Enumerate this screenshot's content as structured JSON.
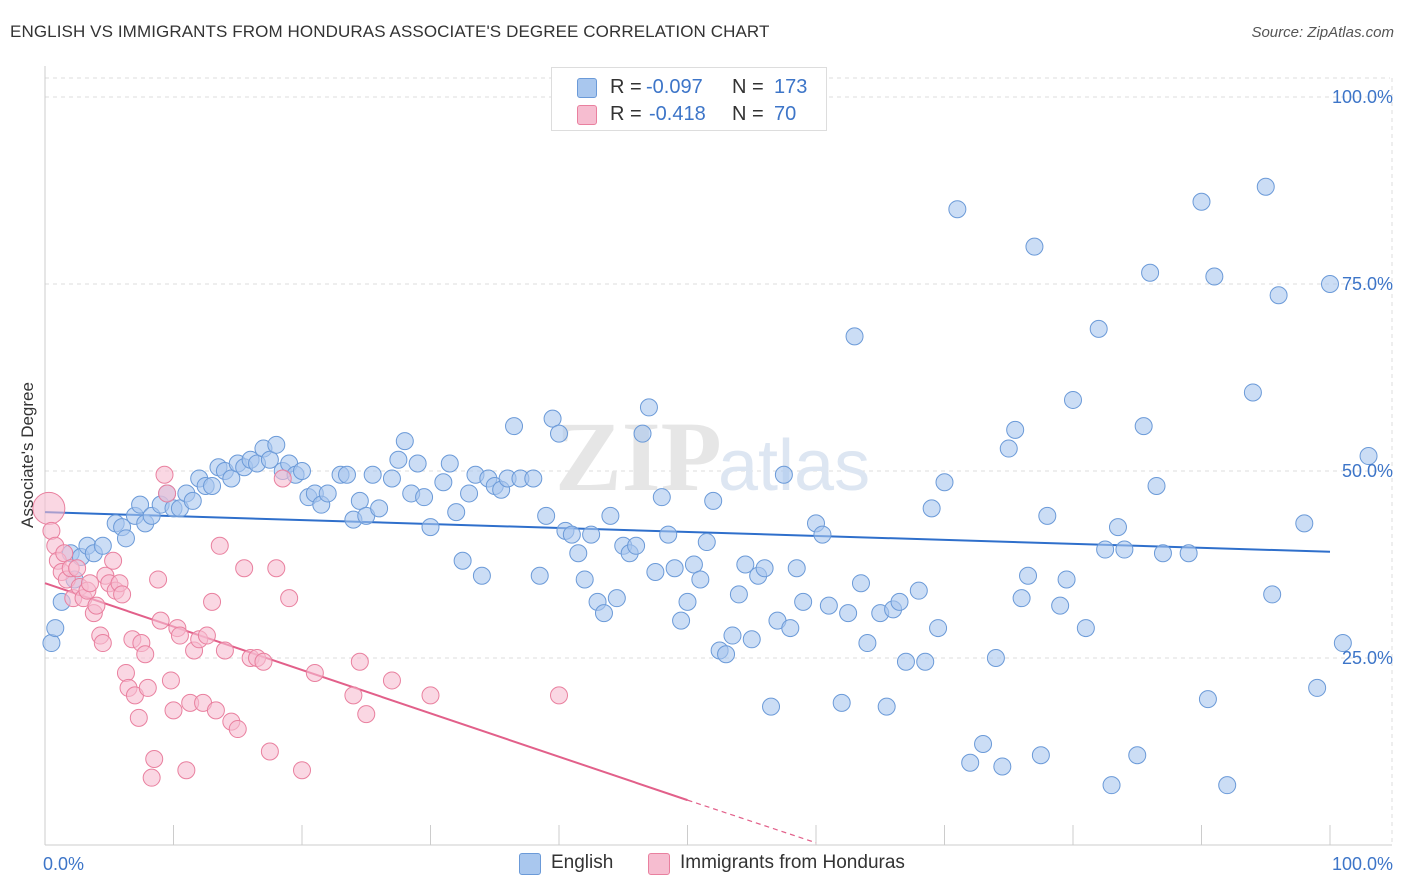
{
  "title": "ENGLISH VS IMMIGRANTS FROM HONDURAS ASSOCIATE'S DEGREE CORRELATION CHART",
  "source": "Source: ZipAtlas.com",
  "watermark": {
    "zip": "ZIP",
    "atlas": "atlas"
  },
  "legend": {
    "r_label": "R =",
    "n_label": "N =",
    "english": {
      "r": "-0.097",
      "n": "173"
    },
    "honduras": {
      "r": "-0.418",
      "n": "70"
    }
  },
  "colors": {
    "english_fill": "#a9c7ee",
    "english_stroke": "#6b9ad8",
    "english_line": "#2f6fcb",
    "honduras_fill": "#f6bdd0",
    "honduras_stroke": "#e9809f",
    "honduras_line": "#e2608a",
    "tick_text": "#3d75c8",
    "grid": "#dcdcdc"
  },
  "chart_data": {
    "type": "scatter",
    "title": "ENGLISH VS IMMIGRANTS FROM HONDURAS ASSOCIATE'S DEGREE CORRELATION CHART",
    "xlabel": "",
    "ylabel": "Associate's Degree",
    "xlim": [
      0,
      100
    ],
    "ylim": [
      0,
      100
    ],
    "x_tick_labels": [
      "0.0%",
      "100.0%"
    ],
    "y_ticks": [
      {
        "value": 100,
        "label": "100.0%"
      },
      {
        "value": 75,
        "label": "75.0%"
      },
      {
        "value": 50,
        "label": "50.0%"
      },
      {
        "value": 25,
        "label": "25.0%"
      }
    ],
    "grid": true,
    "series": [
      {
        "name": "English",
        "r": -0.097,
        "n": 173,
        "trend": {
          "x0": 0,
          "y0": 44.5,
          "x1": 100,
          "y1": 39.2
        },
        "points": [
          [
            0.5,
            27
          ],
          [
            0.8,
            29
          ],
          [
            1.3,
            32.5
          ],
          [
            2,
            39
          ],
          [
            2.3,
            35.5
          ],
          [
            2.8,
            38.5
          ],
          [
            3.3,
            40
          ],
          [
            3.8,
            39
          ],
          [
            4.5,
            40
          ],
          [
            5.5,
            43
          ],
          [
            6,
            42.5
          ],
          [
            6.3,
            41
          ],
          [
            7,
            44
          ],
          [
            7.4,
            45.5
          ],
          [
            7.8,
            43
          ],
          [
            8.3,
            44
          ],
          [
            9,
            45.5
          ],
          [
            9.5,
            47
          ],
          [
            10,
            45
          ],
          [
            10.5,
            45
          ],
          [
            11,
            47
          ],
          [
            11.5,
            46
          ],
          [
            12,
            49
          ],
          [
            12.5,
            48
          ],
          [
            13,
            48
          ],
          [
            13.5,
            50.5
          ],
          [
            14,
            50
          ],
          [
            14.5,
            49
          ],
          [
            15,
            51
          ],
          [
            15.5,
            50.5
          ],
          [
            16,
            51.5
          ],
          [
            16.5,
            51
          ],
          [
            17,
            53
          ],
          [
            17.5,
            51.5
          ],
          [
            18,
            53.5
          ],
          [
            18.5,
            50
          ],
          [
            19,
            51
          ],
          [
            19.5,
            49.5
          ],
          [
            20,
            50
          ],
          [
            20.5,
            46.5
          ],
          [
            21,
            47
          ],
          [
            21.5,
            45.5
          ],
          [
            22,
            47
          ],
          [
            23,
            49.5
          ],
          [
            23.5,
            49.5
          ],
          [
            24,
            43.5
          ],
          [
            24.5,
            46
          ],
          [
            25,
            44
          ],
          [
            25.5,
            49.5
          ],
          [
            26,
            45
          ],
          [
            27,
            49
          ],
          [
            27.5,
            51.5
          ],
          [
            28,
            54
          ],
          [
            28.5,
            47
          ],
          [
            29,
            51
          ],
          [
            29.5,
            46.5
          ],
          [
            30,
            42.5
          ],
          [
            31,
            48.5
          ],
          [
            31.5,
            51
          ],
          [
            32,
            44.5
          ],
          [
            32.5,
            38
          ],
          [
            33,
            47
          ],
          [
            33.5,
            49.5
          ],
          [
            34,
            36
          ],
          [
            34.5,
            49
          ],
          [
            35,
            48
          ],
          [
            35.5,
            47.5
          ],
          [
            36,
            49
          ],
          [
            36.5,
            56
          ],
          [
            37,
            49
          ],
          [
            38,
            49
          ],
          [
            38.5,
            36
          ],
          [
            39,
            44
          ],
          [
            39.5,
            57
          ],
          [
            40,
            55
          ],
          [
            40.5,
            42
          ],
          [
            41,
            41.5
          ],
          [
            41.5,
            39
          ],
          [
            42,
            35.5
          ],
          [
            42.5,
            41.5
          ],
          [
            43,
            32.5
          ],
          [
            43.5,
            31
          ],
          [
            44,
            44
          ],
          [
            44.5,
            33
          ],
          [
            45,
            40
          ],
          [
            45.5,
            39
          ],
          [
            46,
            40
          ],
          [
            46.5,
            55
          ],
          [
            47,
            58.5
          ],
          [
            47.5,
            36.5
          ],
          [
            48,
            46.5
          ],
          [
            48.5,
            41.5
          ],
          [
            49,
            37
          ],
          [
            49.5,
            30
          ],
          [
            50,
            32.5
          ],
          [
            50.5,
            37.5
          ],
          [
            51,
            35.5
          ],
          [
            51.5,
            40.5
          ],
          [
            52,
            46
          ],
          [
            52.5,
            26
          ],
          [
            53,
            25.5
          ],
          [
            53.5,
            28
          ],
          [
            54,
            33.5
          ],
          [
            54.5,
            37.5
          ],
          [
            55,
            27.5
          ],
          [
            55.5,
            36
          ],
          [
            56,
            37
          ],
          [
            56.5,
            18.5
          ],
          [
            57,
            30
          ],
          [
            57.5,
            49.5
          ],
          [
            58,
            29
          ],
          [
            58.5,
            37
          ],
          [
            59,
            32.5
          ],
          [
            60,
            43
          ],
          [
            60.5,
            41.5
          ],
          [
            61,
            32
          ],
          [
            62,
            19
          ],
          [
            62.5,
            31
          ],
          [
            63,
            68
          ],
          [
            63.5,
            35
          ],
          [
            64,
            27
          ],
          [
            65,
            31
          ],
          [
            65.5,
            18.5
          ],
          [
            66,
            31.5
          ],
          [
            66.5,
            32.5
          ],
          [
            67,
            24.5
          ],
          [
            68,
            34
          ],
          [
            68.5,
            24.5
          ],
          [
            69,
            45
          ],
          [
            69.5,
            29
          ],
          [
            70,
            48.5
          ],
          [
            71,
            85
          ],
          [
            72,
            11
          ],
          [
            73,
            13.5
          ],
          [
            74,
            25
          ],
          [
            74.5,
            10.5
          ],
          [
            75,
            53
          ],
          [
            75.5,
            55.5
          ],
          [
            76,
            33
          ],
          [
            76.5,
            36
          ],
          [
            77,
            80
          ],
          [
            77.5,
            12
          ],
          [
            78,
            44
          ],
          [
            79,
            32
          ],
          [
            79.5,
            35.5
          ],
          [
            80,
            59.5
          ],
          [
            81,
            29
          ],
          [
            82,
            69
          ],
          [
            82.5,
            39.5
          ],
          [
            83,
            8
          ],
          [
            83.5,
            42.5
          ],
          [
            84,
            39.5
          ],
          [
            85,
            12
          ],
          [
            85.5,
            56
          ],
          [
            86,
            76.5
          ],
          [
            86.5,
            48
          ],
          [
            87,
            39
          ],
          [
            89,
            39
          ],
          [
            90,
            86
          ],
          [
            90.5,
            19.5
          ],
          [
            91,
            76
          ],
          [
            92,
            8
          ],
          [
            94,
            60.5
          ],
          [
            95,
            88
          ],
          [
            95.5,
            33.5
          ],
          [
            96,
            73.5
          ],
          [
            98,
            43
          ],
          [
            99,
            21
          ],
          [
            100,
            75
          ],
          [
            101,
            27
          ],
          [
            103,
            52
          ]
        ]
      },
      {
        "name": "Immigrants from Honduras",
        "r": -0.418,
        "n": 70,
        "trend": {
          "x0": 0,
          "y0": 35,
          "x1": 50,
          "y1": 6
        },
        "trend_dashed": {
          "x0": 50,
          "y0": 6,
          "x1": 60,
          "y1": 0.3
        },
        "points": [
          [
            0.3,
            45
          ],
          [
            0.5,
            42
          ],
          [
            0.8,
            40
          ],
          [
            1,
            38
          ],
          [
            1.3,
            36.5
          ],
          [
            1.5,
            39
          ],
          [
            1.7,
            35.5
          ],
          [
            2,
            37
          ],
          [
            2.2,
            33
          ],
          [
            2.5,
            37
          ],
          [
            2.7,
            34.5
          ],
          [
            3,
            33
          ],
          [
            3.3,
            34
          ],
          [
            3.5,
            35
          ],
          [
            3.8,
            31
          ],
          [
            4,
            32
          ],
          [
            4.3,
            28
          ],
          [
            4.5,
            27
          ],
          [
            4.7,
            36
          ],
          [
            5,
            35
          ],
          [
            5.3,
            38
          ],
          [
            5.5,
            34
          ],
          [
            5.8,
            35
          ],
          [
            6,
            33.5
          ],
          [
            6.3,
            23
          ],
          [
            6.5,
            21
          ],
          [
            6.8,
            27.5
          ],
          [
            7,
            20
          ],
          [
            7.3,
            17
          ],
          [
            7.5,
            27
          ],
          [
            7.8,
            25.5
          ],
          [
            8,
            21
          ],
          [
            8.3,
            9
          ],
          [
            8.5,
            11.5
          ],
          [
            8.8,
            35.5
          ],
          [
            9,
            30
          ],
          [
            9.3,
            49.5
          ],
          [
            9.5,
            47
          ],
          [
            9.8,
            22
          ],
          [
            10,
            18
          ],
          [
            10.3,
            29
          ],
          [
            10.5,
            28
          ],
          [
            11,
            10
          ],
          [
            11.3,
            19
          ],
          [
            11.6,
            26
          ],
          [
            12,
            27.5
          ],
          [
            12.3,
            19
          ],
          [
            12.6,
            28
          ],
          [
            13,
            32.5
          ],
          [
            13.3,
            18
          ],
          [
            13.6,
            40
          ],
          [
            14,
            26
          ],
          [
            14.5,
            16.5
          ],
          [
            15,
            15.5
          ],
          [
            15.5,
            37
          ],
          [
            16,
            25
          ],
          [
            16.5,
            25
          ],
          [
            17,
            24.5
          ],
          [
            17.5,
            12.5
          ],
          [
            18,
            37
          ],
          [
            18.5,
            49
          ],
          [
            19,
            33
          ],
          [
            20,
            10
          ],
          [
            21,
            23
          ],
          [
            24,
            20
          ],
          [
            24.5,
            24.5
          ],
          [
            25,
            17.5
          ],
          [
            27,
            22
          ],
          [
            30,
            20
          ],
          [
            40,
            20
          ]
        ]
      }
    ]
  }
}
